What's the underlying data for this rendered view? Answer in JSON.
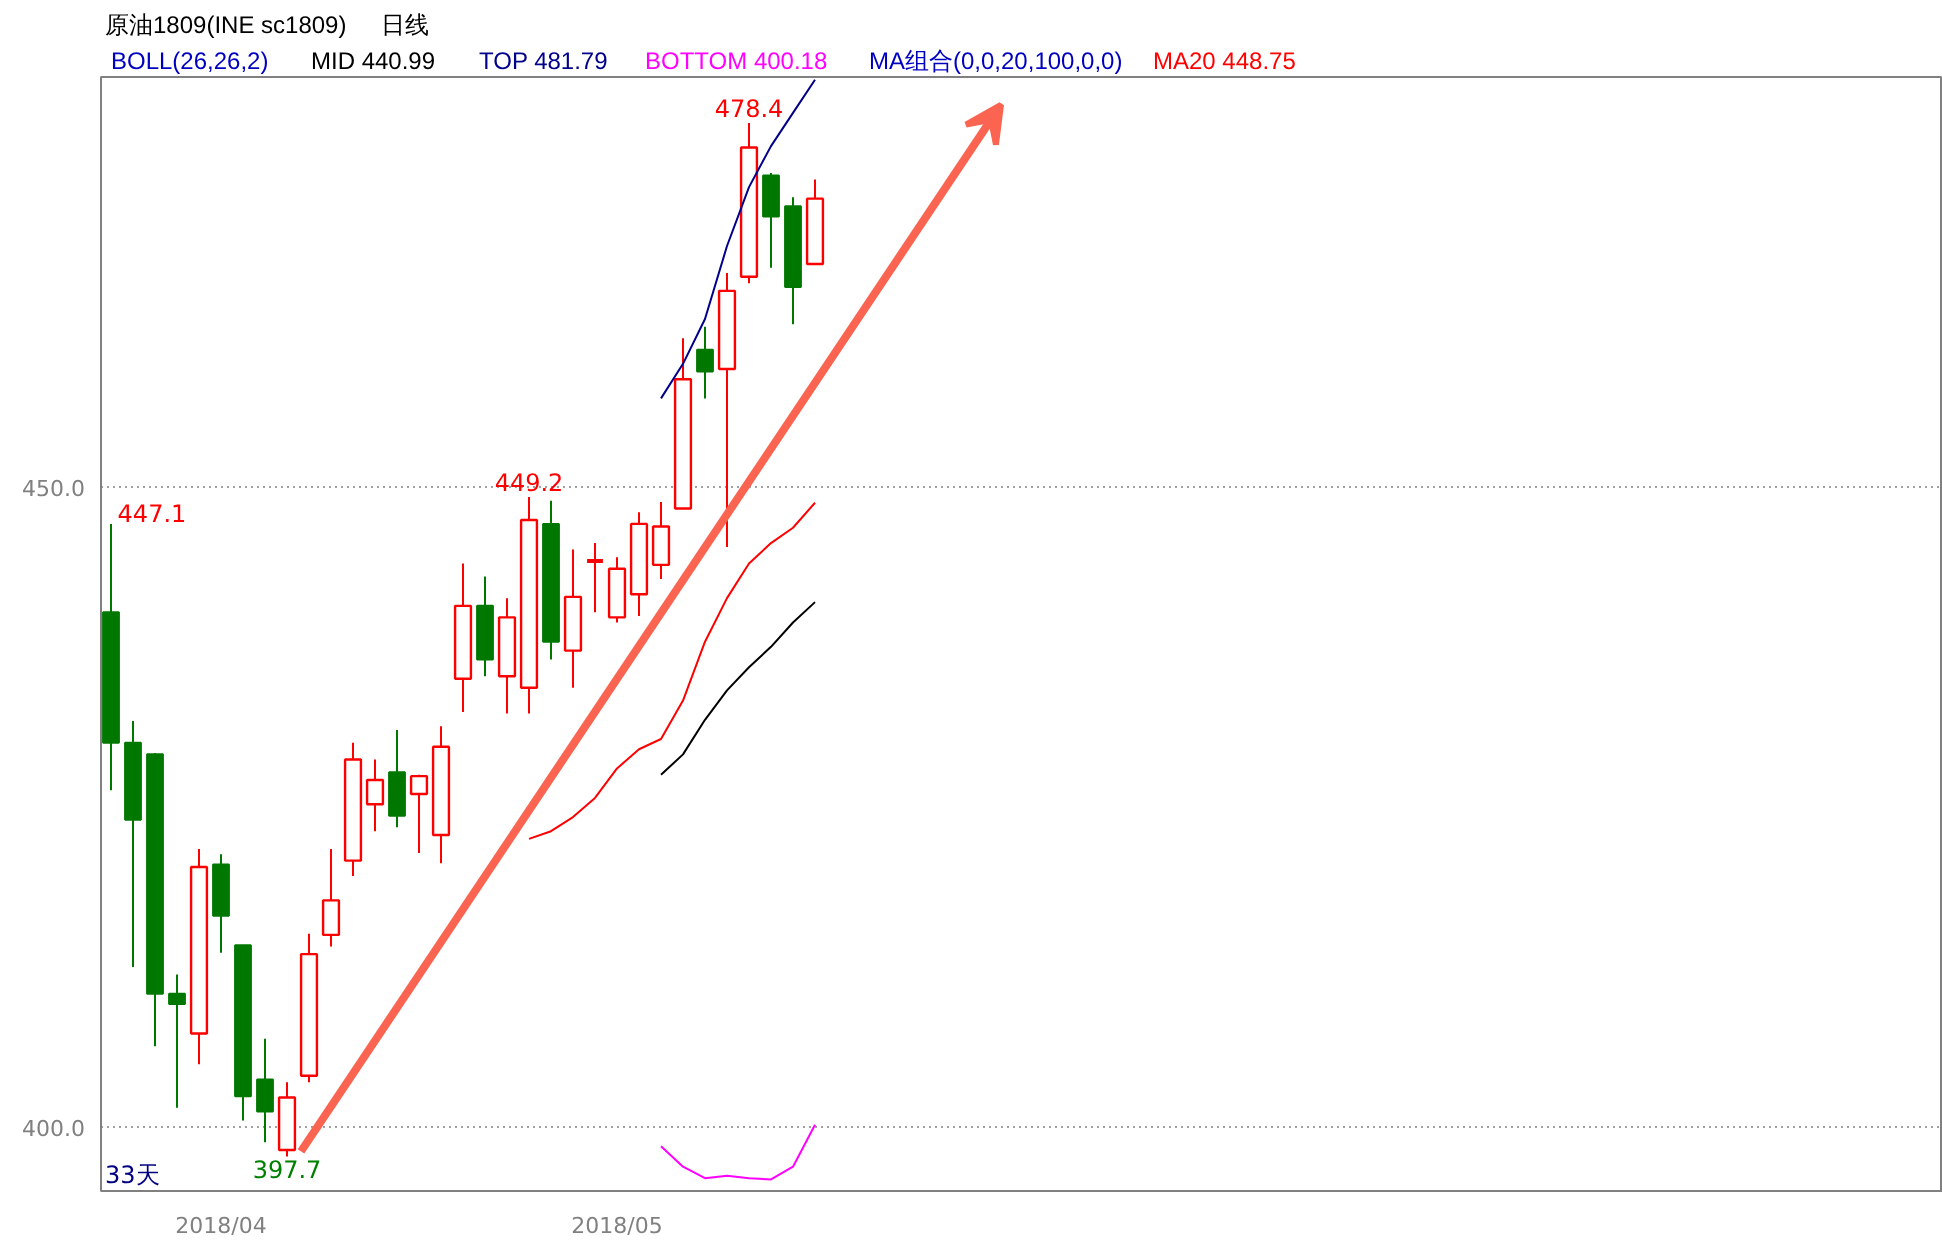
{
  "chart_data": {
    "type": "candlestick",
    "title": "原油1809(INE sc1809)",
    "subtitle": "日线",
    "categories": [
      null,
      null,
      null,
      null,
      null,
      "2018/04",
      null,
      null,
      null,
      null,
      null,
      null,
      null,
      null,
      null,
      null,
      null,
      null,
      null,
      null,
      null,
      null,
      null,
      "2018/05",
      null,
      null,
      null,
      null,
      null,
      null,
      null,
      null,
      null
    ],
    "ohlc": [
      [
        440.2,
        447.1,
        426.3,
        430.0
      ],
      [
        430.0,
        431.7,
        412.5,
        424.0
      ],
      [
        429.1,
        429.2,
        406.3,
        410.4
      ],
      [
        410.4,
        411.9,
        401.5,
        409.6
      ],
      [
        407.3,
        421.7,
        404.9,
        420.3
      ],
      [
        420.5,
        421.3,
        413.6,
        416.5
      ],
      [
        414.2,
        414.2,
        400.5,
        402.4
      ],
      [
        403.7,
        406.9,
        398.8,
        401.2
      ],
      [
        398.2,
        403.5,
        397.7,
        402.3
      ],
      [
        404.0,
        415.1,
        403.5,
        413.5
      ],
      [
        415.0,
        421.7,
        414.1,
        417.7
      ],
      [
        420.8,
        430.0,
        419.6,
        428.7
      ],
      [
        425.2,
        428.7,
        423.1,
        427.1
      ],
      [
        427.7,
        431.0,
        423.4,
        424.3
      ],
      [
        426.0,
        427.5,
        421.4,
        427.4
      ],
      [
        422.8,
        431.3,
        420.6,
        429.7
      ],
      [
        435.0,
        444.0,
        432.4,
        440.7
      ],
      [
        440.7,
        443.0,
        435.2,
        436.5
      ],
      [
        435.2,
        441.3,
        432.3,
        439.8
      ],
      [
        434.3,
        449.2,
        432.3,
        447.4
      ],
      [
        447.1,
        448.9,
        436.5,
        437.9
      ],
      [
        437.2,
        445.1,
        434.3,
        441.4
      ],
      [
        444.2,
        445.6,
        440.2,
        444.2
      ],
      [
        439.8,
        444.5,
        439.4,
        443.6
      ],
      [
        441.6,
        448.0,
        439.9,
        447.1
      ],
      [
        443.9,
        448.8,
        442.8,
        446.9
      ],
      [
        448.3,
        461.6,
        448.3,
        458.4
      ],
      [
        460.7,
        462.5,
        456.9,
        459.0
      ],
      [
        459.2,
        466.7,
        445.3,
        465.3
      ],
      [
        466.4,
        478.4,
        465.9,
        476.5
      ],
      [
        474.3,
        474.5,
        467.1,
        471.1
      ],
      [
        471.9,
        472.6,
        462.7,
        465.6
      ],
      [
        467.4,
        474.0,
        467.4,
        472.5
      ]
    ],
    "colors": [
      "#007800",
      "#007800",
      "#007800",
      "#007800",
      "#ff0000",
      "#007800",
      "#007800",
      "#007800",
      "#ff0000",
      "#ff0000",
      "#ff0000",
      "#ff0000",
      "#ff0000",
      "#007800",
      "#ff0000",
      "#ff0000",
      "#ff0000",
      "#007800",
      "#ff0000",
      "#ff0000",
      "#007800",
      "#ff0000",
      "#ff0000",
      "#ff0000",
      "#ff0000",
      "#ff0000",
      "#ff0000",
      "#007800",
      "#ff0000",
      "#ff0000",
      "#007800",
      "#007800",
      "#ff0000"
    ],
    "series": [
      {
        "name": "MID 440.99",
        "type": "line",
        "color": "#000000",
        "values": [
          null,
          null,
          null,
          null,
          null,
          null,
          null,
          null,
          null,
          null,
          null,
          null,
          null,
          null,
          null,
          null,
          null,
          null,
          null,
          null,
          null,
          null,
          null,
          null,
          null,
          427.5,
          429.1,
          431.8,
          434.1,
          435.9,
          437.5,
          439.4,
          440.99
        ]
      },
      {
        "name": "TOP 481.79",
        "type": "line",
        "color": "#00008b",
        "values": [
          null,
          null,
          null,
          null,
          null,
          null,
          null,
          null,
          null,
          null,
          null,
          null,
          null,
          null,
          null,
          null,
          null,
          null,
          null,
          null,
          null,
          null,
          null,
          null,
          null,
          456.9,
          459.6,
          463.1,
          468.8,
          473.4,
          476.6,
          479.2,
          481.79
        ]
      },
      {
        "name": "BOTTOM 400.18",
        "type": "line",
        "color": "#ff00ff",
        "values": [
          null,
          null,
          null,
          null,
          null,
          null,
          null,
          null,
          null,
          null,
          null,
          null,
          null,
          null,
          null,
          null,
          null,
          null,
          null,
          null,
          null,
          null,
          null,
          null,
          null,
          398.5,
          396.9,
          396.0,
          396.2,
          396.0,
          395.9,
          396.9,
          400.18
        ]
      },
      {
        "name": "MA20 448.75",
        "type": "line",
        "color": "#ff0000",
        "values": [
          null,
          null,
          null,
          null,
          null,
          null,
          null,
          null,
          null,
          null,
          null,
          null,
          null,
          null,
          null,
          null,
          null,
          null,
          null,
          422.5,
          423.1,
          424.2,
          425.7,
          428.0,
          429.5,
          430.3,
          433.3,
          437.9,
          441.3,
          444.0,
          445.6,
          446.8,
          448.75
        ]
      }
    ],
    "ylim": [
      395,
      482
    ],
    "yticks": [
      {
        "value": 400,
        "label": "400.0"
      },
      {
        "value": 450,
        "label": "450.0"
      }
    ],
    "grid": "y",
    "annotations": [
      "BOLL(26,26,2)",
      "MA组合(0,0,20,100,0,0)",
      "33天",
      {
        "text": "478.4",
        "y": 478.4
      },
      {
        "text": "449.2",
        "y": 449.2
      },
      "447.1",
      {
        "text": "397.7",
        "y": 397.7
      }
    ]
  }
}
